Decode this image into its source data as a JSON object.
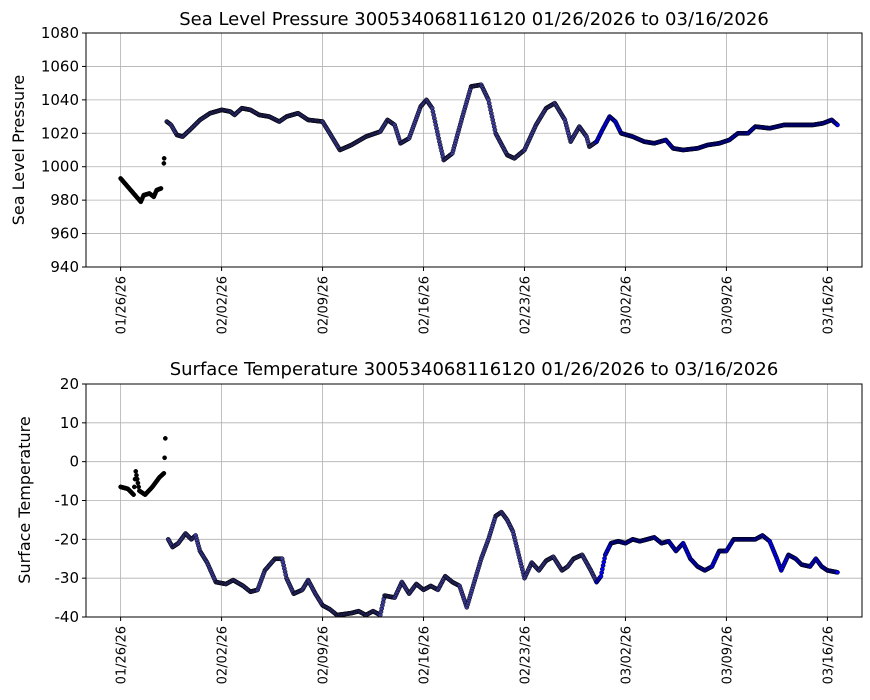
{
  "chart_data": [
    {
      "type": "scatter",
      "title": "Sea Level Pressure 300534068116120  01/26/2026 to 03/16/2026",
      "xlabel": "",
      "ylabel": "Sea Level Pressure",
      "ylim": [
        940,
        1080
      ],
      "yticks": [
        940,
        960,
        980,
        1000,
        1020,
        1040,
        1060,
        1080
      ],
      "xticks": [
        "01/26/26",
        "02/02/26",
        "02/09/26",
        "02/16/26",
        "02/23/26",
        "03/02/26",
        "03/09/26",
        "03/16/26"
      ],
      "x_unit": "days since 01/26/26",
      "xlim": [
        -2.4,
        51.4
      ],
      "grid": true,
      "segments": [
        {
          "color": "#000000",
          "points": [
            [
              0,
              993
            ],
            [
              0.3,
              990
            ],
            [
              0.6,
              987
            ],
            [
              0.9,
              984
            ],
            [
              1.2,
              981
            ],
            [
              1.4,
              979
            ],
            [
              1.6,
              983
            ],
            [
              2.0,
              984
            ],
            [
              2.3,
              982
            ],
            [
              2.5,
              986
            ],
            [
              2.8,
              987
            ]
          ]
        },
        {
          "color": "#000000",
          "points": [
            [
              3.0,
              1002
            ],
            [
              3.02,
              1005
            ]
          ]
        },
        {
          "color": "#3c3c9c",
          "points": [
            [
              3.2,
              1027
            ],
            [
              3.5,
              1025
            ],
            [
              3.9,
              1019
            ],
            [
              4.3,
              1018
            ],
            [
              4.8,
              1022
            ],
            [
              5.5,
              1028
            ],
            [
              6.2,
              1032
            ],
            [
              7,
              1034
            ],
            [
              7.6,
              1033
            ],
            [
              7.9,
              1031
            ],
            [
              8.4,
              1035
            ],
            [
              9,
              1034
            ],
            [
              9.6,
              1031
            ],
            [
              10.3,
              1030
            ],
            [
              11,
              1027
            ],
            [
              11.5,
              1030
            ],
            [
              12.3,
              1032
            ],
            [
              13,
              1028
            ],
            [
              14,
              1027
            ],
            [
              14.5,
              1020
            ],
            [
              15.2,
              1010
            ],
            [
              16,
              1013
            ],
            [
              17,
              1018
            ],
            [
              18,
              1021
            ],
            [
              18.5,
              1028
            ],
            [
              19,
              1025
            ],
            [
              19.4,
              1014
            ],
            [
              20,
              1017
            ],
            [
              20.8,
              1036
            ],
            [
              21.2,
              1040
            ],
            [
              21.6,
              1035
            ],
            [
              22.1,
              1015
            ],
            [
              22.4,
              1004
            ],
            [
              23,
              1008
            ],
            [
              23.7,
              1030
            ],
            [
              24.3,
              1048
            ],
            [
              25,
              1049
            ],
            [
              25.5,
              1040
            ],
            [
              26,
              1020
            ],
            [
              26.8,
              1007
            ],
            [
              27.3,
              1005
            ],
            [
              28,
              1010
            ],
            [
              28.8,
              1025
            ],
            [
              29.5,
              1035
            ],
            [
              30.1,
              1038
            ],
            [
              30.8,
              1028
            ],
            [
              31.2,
              1015
            ],
            [
              31.8,
              1024
            ],
            [
              32.3,
              1018
            ],
            [
              32.5,
              1012
            ],
            [
              33,
              1015
            ]
          ]
        },
        {
          "color": "#0000ff",
          "points": [
            [
              33,
              1015
            ],
            [
              33.4,
              1022
            ],
            [
              33.9,
              1030
            ],
            [
              34.3,
              1027
            ],
            [
              34.7,
              1020
            ],
            [
              35.5,
              1018
            ],
            [
              36.3,
              1015
            ],
            [
              37,
              1014
            ],
            [
              37.8,
              1016
            ],
            [
              38.3,
              1011
            ],
            [
              39,
              1010
            ],
            [
              40,
              1011
            ],
            [
              40.7,
              1013
            ],
            [
              41.5,
              1014
            ],
            [
              42.2,
              1016
            ],
            [
              42.8,
              1020
            ],
            [
              43.5,
              1020
            ],
            [
              44,
              1024
            ],
            [
              45,
              1023
            ],
            [
              46,
              1025
            ],
            [
              47,
              1025
            ],
            [
              48,
              1025
            ],
            [
              48.7,
              1026
            ],
            [
              49.3,
              1028
            ],
            [
              49.7,
              1025
            ]
          ]
        }
      ]
    },
    {
      "type": "scatter",
      "title": "Surface Temperature 300534068116120  01/26/2026 to 03/16/2026",
      "xlabel": "",
      "ylabel": "Surface Temperature",
      "ylim": [
        -40,
        20
      ],
      "yticks": [
        -40,
        -30,
        -20,
        -10,
        0,
        10,
        20
      ],
      "xticks": [
        "01/26/26",
        "02/02/26",
        "02/09/26",
        "02/16/26",
        "02/23/26",
        "03/02/26",
        "03/09/26",
        "03/16/26"
      ],
      "x_unit": "days since 01/26/26",
      "xlim": [
        -2.4,
        51.4
      ],
      "grid": true,
      "segments": [
        {
          "color": "#000000",
          "points": [
            [
              0,
              -6.5
            ],
            [
              0.5,
              -7
            ],
            [
              0.9,
              -8.5
            ],
            [
              1.05,
              -2.5
            ],
            [
              1.3,
              -7.5
            ],
            [
              1.7,
              -8.5
            ],
            [
              2.2,
              -6.5
            ],
            [
              2.7,
              -4
            ],
            [
              3.0,
              -3
            ],
            [
              3.05,
              1
            ],
            [
              3.1,
              6
            ]
          ]
        },
        {
          "color": "#3c3c9c",
          "points": [
            [
              3.3,
              -20
            ],
            [
              3.6,
              -22
            ],
            [
              4.0,
              -21
            ],
            [
              4.5,
              -18.5
            ],
            [
              4.9,
              -20
            ],
            [
              5.2,
              -19
            ],
            [
              5.5,
              -23
            ],
            [
              6,
              -26
            ],
            [
              6.6,
              -31
            ],
            [
              7.3,
              -31.5
            ],
            [
              7.8,
              -30.5
            ],
            [
              8.5,
              -32
            ],
            [
              9,
              -33.5
            ],
            [
              9.5,
              -33
            ],
            [
              10,
              -28
            ],
            [
              10.7,
              -25
            ],
            [
              11.2,
              -25
            ],
            [
              11.5,
              -30
            ],
            [
              12,
              -34
            ],
            [
              12.6,
              -33
            ],
            [
              13,
              -30.5
            ],
            [
              13.5,
              -34
            ],
            [
              14,
              -37
            ],
            [
              14.5,
              -38
            ],
            [
              15,
              -39.5
            ],
            [
              16,
              -39
            ],
            [
              16.5,
              -38.5
            ],
            [
              17,
              -39.5
            ],
            [
              17.5,
              -38.5
            ],
            [
              18,
              -39.5
            ],
            [
              18.3,
              -34.5
            ],
            [
              19,
              -35
            ],
            [
              19.5,
              -31
            ],
            [
              20,
              -34
            ],
            [
              20.5,
              -31.5
            ],
            [
              21,
              -33
            ],
            [
              21.5,
              -32
            ],
            [
              22,
              -33
            ],
            [
              22.5,
              -29.5
            ],
            [
              23,
              -31
            ],
            [
              23.5,
              -32
            ],
            [
              24,
              -37.5
            ],
            [
              24.6,
              -30
            ],
            [
              25,
              -25
            ],
            [
              25.5,
              -20
            ],
            [
              26,
              -14
            ],
            [
              26.4,
              -13
            ],
            [
              26.8,
              -15
            ],
            [
              27.2,
              -18
            ],
            [
              27.6,
              -24
            ],
            [
              28,
              -30
            ],
            [
              28.5,
              -26
            ],
            [
              29,
              -28
            ],
            [
              29.5,
              -25.5
            ],
            [
              30,
              -24.5
            ],
            [
              30.6,
              -28
            ],
            [
              31,
              -27
            ],
            [
              31.4,
              -25
            ],
            [
              32,
              -24
            ],
            [
              32.6,
              -28
            ],
            [
              33,
              -31
            ]
          ]
        },
        {
          "color": "#0000ff",
          "points": [
            [
              33,
              -31
            ],
            [
              33.3,
              -29.5
            ],
            [
              33.6,
              -24
            ],
            [
              34,
              -21
            ],
            [
              34.5,
              -20.5
            ],
            [
              35,
              -21
            ],
            [
              35.5,
              -20
            ],
            [
              36,
              -20.5
            ],
            [
              37,
              -19.5
            ],
            [
              37.5,
              -21
            ],
            [
              38,
              -20.5
            ],
            [
              38.5,
              -23
            ],
            [
              39,
              -21
            ],
            [
              39.5,
              -25
            ],
            [
              40,
              -27
            ],
            [
              40.5,
              -28
            ],
            [
              41,
              -27
            ],
            [
              41.5,
              -23
            ],
            [
              42,
              -23
            ],
            [
              42.5,
              -20
            ],
            [
              43,
              -20
            ],
            [
              44,
              -20
            ],
            [
              44.5,
              -19
            ],
            [
              45,
              -20.5
            ],
            [
              45.5,
              -25
            ],
            [
              45.8,
              -28
            ],
            [
              46.3,
              -24
            ],
            [
              46.8,
              -25
            ],
            [
              47.2,
              -26.5
            ],
            [
              47.8,
              -27
            ],
            [
              48.2,
              -25
            ],
            [
              48.6,
              -27
            ],
            [
              49,
              -28
            ],
            [
              49.7,
              -28.5
            ]
          ]
        }
      ]
    }
  ]
}
